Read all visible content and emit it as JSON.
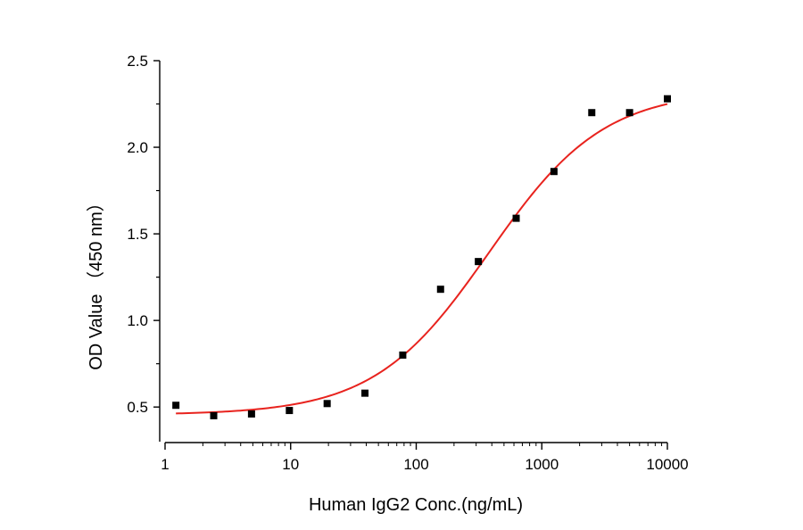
{
  "chart_data": {
    "type": "scatter",
    "xlabel": "Human IgG2 Conc.(ng/mL)",
    "ylabel": "OD Value （450 nm）",
    "x_scale": "log",
    "xlim": [
      1,
      10000
    ],
    "ylim": [
      0.3,
      2.5
    ],
    "x_ticks": [
      1,
      10,
      100,
      1000,
      10000
    ],
    "x_tick_labels": [
      "1",
      "10",
      "100",
      "1000",
      "10000"
    ],
    "y_ticks": [
      0.5,
      1.0,
      1.5,
      2.0,
      2.5
    ],
    "y_tick_labels": [
      "0.5",
      "1.0",
      "1.5",
      "2.0",
      "2.5"
    ],
    "grid": false,
    "colors": {
      "points": "#000000",
      "fit_line": "#e8231e",
      "axis": "#000000"
    },
    "series": [
      {
        "type": "scatter",
        "marker": "square",
        "x": [
          1.22,
          2.44,
          4.88,
          9.77,
          19.53,
          39.06,
          78.13,
          156.25,
          312.5,
          625,
          1250,
          2500,
          5000,
          10000
        ],
        "y": [
          0.51,
          0.45,
          0.46,
          0.48,
          0.52,
          0.58,
          0.8,
          1.18,
          1.34,
          1.59,
          1.86,
          2.2,
          2.2,
          2.28
        ]
      },
      {
        "type": "line",
        "fit": "four-parameter-logistic",
        "params": {
          "bottom": 0.455,
          "top": 2.33,
          "ec50": 380,
          "hill": 0.95
        },
        "x_range": [
          1.22,
          10000
        ]
      }
    ]
  }
}
